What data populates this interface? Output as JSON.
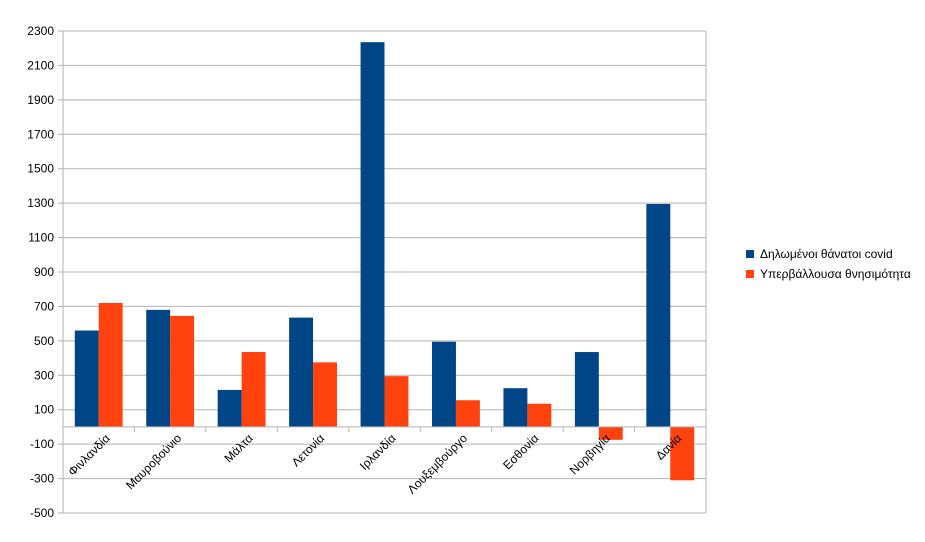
{
  "chart_data": {
    "type": "bar",
    "categories": [
      "Φινλανδία",
      "Μαυροβούνιο",
      "Μάλτα",
      "Λετονία",
      "Ιρλανδία",
      "Λουξεμβούργο",
      "Εσθονία",
      "Νορβηγία",
      "Δανία"
    ],
    "series": [
      {
        "name": "Δηλωμένοι θάνατοι covid",
        "color": "#004586",
        "values": [
          560,
          680,
          215,
          635,
          2235,
          495,
          225,
          435,
          1295
        ]
      },
      {
        "name": "Υπερβάλλουσα θνησιμότητα",
        "color": "#ff420e",
        "values": [
          720,
          645,
          435,
          375,
          295,
          155,
          135,
          -75,
          -310
        ]
      }
    ],
    "yticks": [
      2300,
      2100,
      1900,
      1700,
      1500,
      1300,
      1100,
      900,
      700,
      500,
      300,
      100,
      -100,
      -300,
      -500
    ],
    "ylim": [
      -500,
      2300
    ],
    "grid": true,
    "legend_position": "right",
    "title": "",
    "xlabel": "",
    "ylabel": ""
  }
}
